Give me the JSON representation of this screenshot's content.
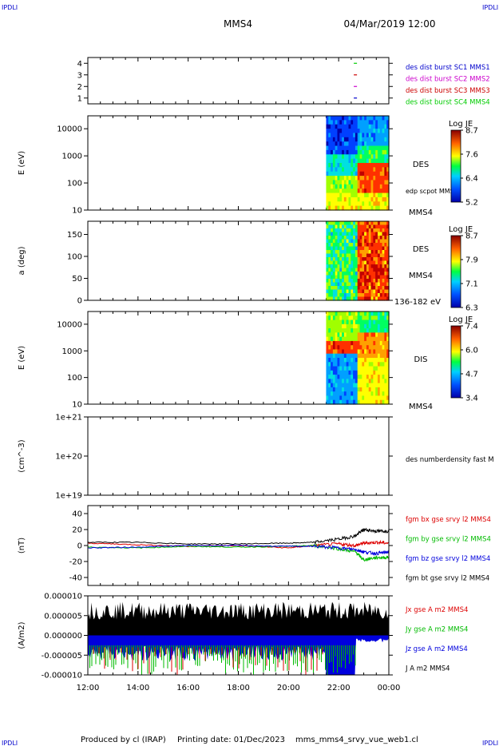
{
  "header": {
    "corner_tl": "IPDLI",
    "corner_tr": "IPDLI",
    "corner_bl": "IPDLI",
    "corner_br": "IPDLI",
    "spacecraft": "MMS4",
    "datetime": "04/Mar/2019 12:00"
  },
  "footer": {
    "produced_by": "Produced by cl (IRAP)",
    "printing_date": "Printing date: 01/Dec/2023",
    "filename": "mms_mms4_srvy_vue_web1.cl"
  },
  "chart_data": [
    {
      "type": "scatter",
      "panel": "burst-availability",
      "ylim": [
        0.5,
        4.5
      ],
      "yticks": [
        "1",
        "2",
        "3",
        "4"
      ],
      "legend": [
        {
          "name": "des dist burst SC1 MMS1",
          "color": "#0000cc"
        },
        {
          "name": "des dist burst SC2 MMS2",
          "color": "#cc00cc"
        },
        {
          "name": "des dist burst SC3 MMS3",
          "color": "#cc0000"
        },
        {
          "name": "des dist burst SC4 MMS4",
          "color": "#00cc00"
        }
      ],
      "series": [
        {
          "name": "des dist burst SC1 MMS1",
          "x": [
            "22:40"
          ],
          "y": [
            1
          ]
        },
        {
          "name": "des dist burst SC2 MMS2",
          "x": [
            "22:40"
          ],
          "y": [
            2
          ]
        },
        {
          "name": "des dist burst SC3 MMS3",
          "x": [
            "22:40"
          ],
          "y": [
            3
          ]
        },
        {
          "name": "des dist burst SC4 MMS4",
          "x": [
            "22:40"
          ],
          "y": [
            4
          ]
        }
      ]
    },
    {
      "type": "heatmap",
      "panel": "des-energy",
      "ylabel": "E (eV)",
      "yscale": "log",
      "ylim": [
        10,
        30000
      ],
      "yticks": [
        "10",
        "100",
        "1000",
        "10000"
      ],
      "data_start": "21:30",
      "labels": [
        "DES",
        "edp scpot MMS4",
        "MMS4"
      ],
      "colorbar": {
        "title": "Log JE",
        "ticks": [
          "8.7",
          "7.6",
          "6.4",
          "5.2"
        ],
        "range": [
          5.2,
          8.7
        ]
      }
    },
    {
      "type": "heatmap",
      "panel": "des-pitch-angle",
      "ylabel": "a (deg)",
      "ylim": [
        0,
        180
      ],
      "yticks": [
        "0",
        "50",
        "100",
        "150"
      ],
      "data_start": "21:30",
      "labels": [
        "DES",
        "MMS4",
        "136-182 eV"
      ],
      "colorbar": {
        "title": "Log JE",
        "ticks": [
          "8.7",
          "7.9",
          "7.1",
          "6.3"
        ],
        "range": [
          6.3,
          8.7
        ]
      }
    },
    {
      "type": "heatmap",
      "panel": "dis-energy",
      "ylabel": "E (eV)",
      "yscale": "log",
      "ylim": [
        10,
        30000
      ],
      "yticks": [
        "10",
        "100",
        "1000",
        "10000"
      ],
      "data_start": "21:30",
      "labels": [
        "DIS",
        "MMS4"
      ],
      "colorbar": {
        "title": "Log JE",
        "ticks": [
          "7.4",
          "6.0",
          "4.7",
          "3.4"
        ],
        "range": [
          3.4,
          7.4
        ]
      }
    },
    {
      "type": "line",
      "panel": "density",
      "ylabel": "(cm^-3)",
      "yscale": "log",
      "ylim": [
        1e+19,
        1e+21
      ],
      "yticks": [
        "1e+19",
        "1e+20",
        "1e+21"
      ],
      "legend": [
        {
          "name": "des numberdensity fast M",
          "color": "#000000"
        }
      ],
      "series": []
    },
    {
      "type": "line",
      "panel": "magnetic-field",
      "ylabel": "(nT)",
      "ylim": [
        -50,
        50
      ],
      "yticks": [
        "-40",
        "-20",
        "0",
        "20",
        "40"
      ],
      "legend": [
        {
          "name": "fgm bx gse srvy l2 MMS4",
          "color": "#dd0000"
        },
        {
          "name": "fgm by gse srvy l2 MMS4",
          "color": "#00bb00"
        },
        {
          "name": "fgm bz gse srvy l2 MMS4",
          "color": "#0000dd"
        },
        {
          "name": "fgm bt gse srvy l2 MMS4",
          "color": "#000000"
        }
      ],
      "series": [
        {
          "name": "fgm bx gse srvy l2 MMS4",
          "x": [
            "12:00",
            "14:00",
            "16:00",
            "18:00",
            "20:00",
            "21:00",
            "22:00",
            "22:40",
            "23:00",
            "23:30",
            "00:00"
          ],
          "y": [
            3,
            1,
            -1,
            0,
            -3,
            0,
            2,
            0,
            3,
            4,
            3
          ]
        },
        {
          "name": "fgm by gse srvy l2 MMS4",
          "x": [
            "12:00",
            "14:00",
            "16:00",
            "18:00",
            "20:00",
            "21:00",
            "22:00",
            "22:40",
            "23:00",
            "23:30",
            "00:00"
          ],
          "y": [
            -2,
            -3,
            -1,
            -2,
            -1,
            0,
            -4,
            -8,
            -18,
            -15,
            -15
          ]
        },
        {
          "name": "fgm bz gse srvy l2 MMS4",
          "x": [
            "12:00",
            "14:00",
            "16:00",
            "18:00",
            "20:00",
            "21:00",
            "22:00",
            "22:40",
            "23:00",
            "23:30",
            "00:00"
          ],
          "y": [
            -3,
            -2,
            0,
            0,
            -1,
            -1,
            -3,
            -5,
            -8,
            -10,
            -8
          ]
        },
        {
          "name": "fgm bt gse srvy l2 MMS4",
          "x": [
            "12:00",
            "14:00",
            "16:00",
            "18:00",
            "20:00",
            "21:00",
            "22:00",
            "22:40",
            "23:00",
            "23:30",
            "00:00"
          ],
          "y": [
            4,
            4,
            2,
            2,
            3,
            4,
            8,
            12,
            20,
            18,
            18
          ]
        }
      ]
    },
    {
      "type": "area",
      "panel": "current-density",
      "ylabel": "(A/m2)",
      "ylim": [
        -1e-05,
        1e-05
      ],
      "yticks": [
        "-0.000010",
        "-0.000005",
        "0.000000",
        "0.000005",
        "0.000010"
      ],
      "legend": [
        {
          "name": "Jx gse A m2 MMS4",
          "color": "#dd0000"
        },
        {
          "name": "Jy gse A m2 MMS4",
          "color": "#00bb00"
        },
        {
          "name": "Jz gse A m2 MMS4",
          "color": "#0000dd"
        },
        {
          "name": "J A m2 MMS4",
          "color": "#000000"
        }
      ],
      "series": []
    }
  ],
  "xaxis": {
    "ticks": [
      "12:00",
      "14:00",
      "16:00",
      "18:00",
      "20:00",
      "22:00",
      "00:00"
    ]
  }
}
